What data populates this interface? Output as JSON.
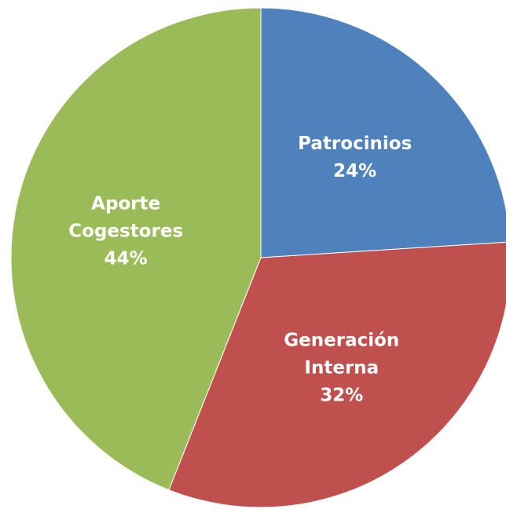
{
  "chart_data": {
    "type": "pie",
    "categories": [
      "Patrocinios",
      "Generación Interna",
      "Aporte Cogestores"
    ],
    "values": [
      24,
      32,
      44
    ],
    "value_labels": [
      "24%",
      "32%",
      "44%"
    ],
    "colors": [
      "#4f81bd",
      "#c0504d",
      "#9bbb59"
    ]
  }
}
